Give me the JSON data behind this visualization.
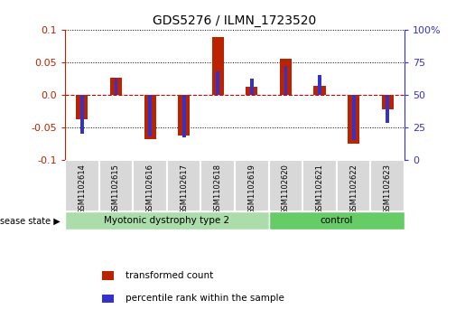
{
  "title": "GDS5276 / ILMN_1723520",
  "samples": [
    "GSM1102614",
    "GSM1102615",
    "GSM1102616",
    "GSM1102617",
    "GSM1102618",
    "GSM1102619",
    "GSM1102620",
    "GSM1102621",
    "GSM1102622",
    "GSM1102623"
  ],
  "red_values": [
    -0.038,
    0.026,
    -0.068,
    -0.063,
    0.088,
    0.012,
    0.055,
    0.013,
    -0.075,
    -0.022
  ],
  "blue_values_pct": [
    20,
    62,
    18,
    17,
    68,
    62,
    72,
    65,
    15,
    28
  ],
  "ylim": [
    -0.1,
    0.1
  ],
  "yticks_left": [
    -0.1,
    -0.05,
    0.0,
    0.05,
    0.1
  ],
  "yticks_right_pct": [
    0,
    25,
    50,
    75,
    100
  ],
  "yticks_right_labels": [
    "0",
    "25",
    "50",
    "75",
    "100%"
  ],
  "red_color": "#bb2200",
  "blue_color": "#3333cc",
  "zero_line_color": "#cc0000",
  "disease_groups": [
    {
      "label": "Myotonic dystrophy type 2",
      "start": 0,
      "end": 6,
      "color": "#aaddaa"
    },
    {
      "label": "control",
      "start": 6,
      "end": 10,
      "color": "#66cc66"
    }
  ],
  "legend_labels": [
    "transformed count",
    "percentile rank within the sample"
  ],
  "legend_colors": [
    "#bb2200",
    "#3333cc"
  ],
  "disease_state_label": "disease state",
  "sample_bg_color": "#d8d8d8",
  "sample_border_color": "#ffffff",
  "red_bar_width": 0.35,
  "blue_bar_width": 0.1
}
